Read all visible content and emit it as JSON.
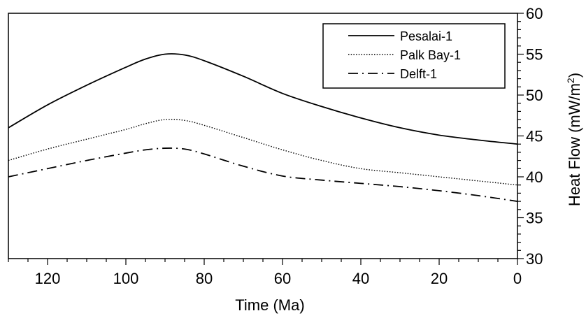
{
  "chart_data": {
    "type": "line",
    "title": "",
    "xlabel": "Time (Ma)",
    "ylabel_main": "Heat Flow  (mW/m",
    "ylabel_sup": "2",
    "ylabel_tail": ")",
    "xlim": [
      130,
      0
    ],
    "ylim": [
      30,
      60
    ],
    "x_ticks": [
      120,
      100,
      80,
      60,
      40,
      20,
      0
    ],
    "y_ticks": [
      30,
      35,
      40,
      45,
      50,
      55,
      60
    ],
    "x_minor_step": 5,
    "y_minor_step": 1,
    "x_reversed": true,
    "y_axis_side": "right",
    "grid": false,
    "legend_position": "top-right",
    "series": [
      {
        "name": "Pesalai-1",
        "style": "solid",
        "x": [
          130,
          120,
          110,
          100,
          95,
          90,
          85,
          80,
          70,
          60,
          50,
          40,
          30,
          20,
          10,
          0
        ],
        "y": [
          46,
          48.8,
          51.2,
          53.4,
          54.4,
          55,
          54.9,
          54.2,
          52.3,
          50.2,
          48.6,
          47.2,
          46,
          45.1,
          44.5,
          44
        ]
      },
      {
        "name": "Palk Bay-1",
        "style": "dotted",
        "x": [
          130,
          120,
          110,
          100,
          95,
          90,
          85,
          80,
          70,
          60,
          50,
          40,
          30,
          20,
          10,
          0
        ],
        "y": [
          42,
          43.4,
          44.6,
          45.8,
          46.5,
          47,
          46.9,
          46.3,
          44.8,
          43.3,
          42,
          41,
          40.5,
          40,
          39.5,
          39
        ]
      },
      {
        "name": "Delft-1",
        "style": "dashdot",
        "x": [
          130,
          120,
          110,
          100,
          95,
          90,
          85,
          80,
          70,
          60,
          50,
          40,
          30,
          20,
          10,
          0
        ],
        "y": [
          40,
          41,
          42,
          42.9,
          43.3,
          43.5,
          43.4,
          42.8,
          41.3,
          40.1,
          39.6,
          39.2,
          38.8,
          38.3,
          37.7,
          37
        ]
      }
    ]
  }
}
